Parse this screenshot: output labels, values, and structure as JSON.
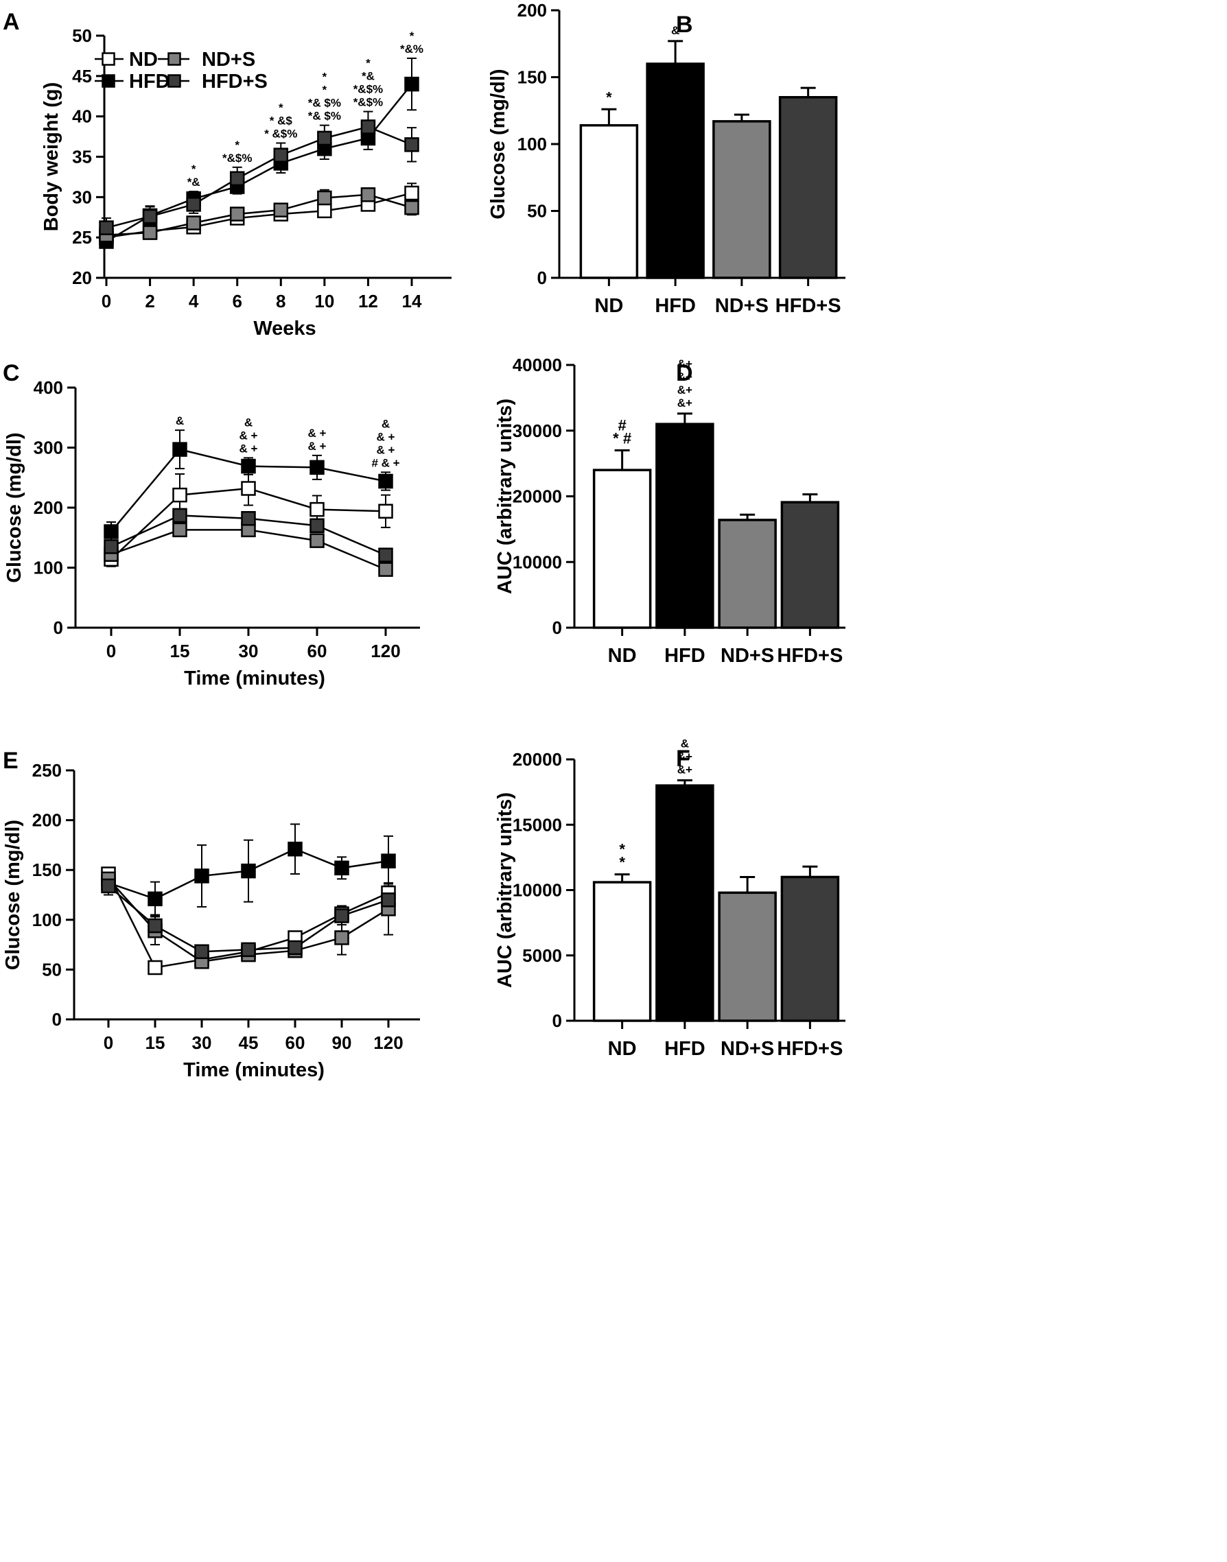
{
  "legend": {
    "entries": [
      {
        "label": "ND",
        "color": "#ffffff"
      },
      {
        "label": "HFD",
        "color": "#000000"
      },
      {
        "label": "ND+S",
        "color": "#7f7f7f"
      },
      {
        "label": "HFD+S",
        "color": "#3c3c3c"
      }
    ]
  },
  "chart_data": [
    {
      "panel": "A",
      "type": "line",
      "xlabel": "Weeks",
      "ylabel": "Body weight (g)",
      "categories": [
        "0",
        "2",
        "4",
        "6",
        "8",
        "10",
        "12",
        "14"
      ],
      "ylim": [
        20,
        50
      ],
      "yticks": [
        20,
        25,
        30,
        35,
        40,
        45,
        50
      ],
      "series": [
        {
          "name": "ND",
          "color": "#ffffff",
          "values": [
            25.0,
            25.8,
            26.3,
            27.4,
            27.9,
            28.3,
            29.1,
            30.5
          ],
          "errors": [
            0.5,
            0.6,
            0.6,
            0.7,
            0.7,
            0.7,
            0.8,
            1.2
          ]
        },
        {
          "name": "HFD",
          "color": "#000000",
          "values": [
            24.5,
            27.7,
            29.8,
            31.3,
            34.2,
            36.0,
            37.3,
            44.0
          ],
          "errors": [
            0.4,
            1.2,
            0.9,
            0.9,
            1.2,
            1.3,
            1.4,
            3.2
          ]
        },
        {
          "name": "ND+S",
          "color": "#7f7f7f",
          "values": [
            25.3,
            25.6,
            26.8,
            27.9,
            28.4,
            29.9,
            30.3,
            28.7
          ],
          "errors": [
            0.6,
            0.6,
            0.6,
            0.7,
            0.8,
            1.0,
            0.8,
            0.9
          ]
        },
        {
          "name": "HFD+S",
          "color": "#3c3c3c",
          "values": [
            26.2,
            27.6,
            29.1,
            32.3,
            35.2,
            37.3,
            38.7,
            36.5
          ],
          "errors": [
            1.2,
            1.2,
            1.1,
            1.4,
            1.5,
            1.6,
            1.9,
            2.1
          ]
        }
      ],
      "annotations": [
        {
          "x": "4",
          "lines": [
            "*",
            "*&"
          ]
        },
        {
          "x": "6",
          "lines": [
            "*",
            "*&$%"
          ]
        },
        {
          "x": "8",
          "lines": [
            "*",
            "* &$",
            "* &$%"
          ]
        },
        {
          "x": "10",
          "lines": [
            "*",
            "*",
            "*& $%",
            "*& $%"
          ]
        },
        {
          "x": "12",
          "lines": [
            "*",
            "*&",
            "*&$%",
            "*&$%"
          ]
        },
        {
          "x": "14",
          "lines": [
            "*",
            "*&%"
          ]
        }
      ]
    },
    {
      "panel": "B",
      "type": "bar",
      "ylabel": "Glucose (mg/dl)",
      "categories": [
        "ND",
        "HFD",
        "ND+S",
        "HFD+S"
      ],
      "colors": [
        "#ffffff",
        "#000000",
        "#7f7f7f",
        "#3c3c3c"
      ],
      "values": [
        114,
        160,
        117,
        135
      ],
      "errors": [
        12,
        17,
        5,
        7
      ],
      "ylim": [
        0,
        200
      ],
      "yticks": [
        0,
        50,
        100,
        150,
        200
      ],
      "annotations": [
        [
          "*"
        ],
        [
          "&"
        ],
        [],
        []
      ]
    },
    {
      "panel": "C",
      "type": "line",
      "xlabel": "Time (minutes)",
      "ylabel": "Glucose (mg/dl)",
      "categories": [
        "0",
        "15",
        "30",
        "60",
        "120"
      ],
      "ylim": [
        0,
        400
      ],
      "yticks": [
        0,
        100,
        200,
        300,
        400
      ],
      "series": [
        {
          "name": "ND",
          "color": "#ffffff",
          "values": [
            114,
            221,
            232,
            197,
            194
          ],
          "errors": [
            12,
            35,
            28,
            23,
            27
          ]
        },
        {
          "name": "HFD",
          "color": "#000000",
          "values": [
            160,
            297,
            269,
            267,
            244
          ],
          "errors": [
            16,
            32,
            14,
            20,
            15
          ]
        },
        {
          "name": "ND+S",
          "color": "#7f7f7f",
          "values": [
            122,
            163,
            163,
            145,
            97
          ],
          "errors": [
            6,
            6,
            6,
            6,
            5
          ]
        },
        {
          "name": "HFD+S",
          "color": "#3c3c3c",
          "values": [
            135,
            187,
            182,
            170,
            121
          ],
          "errors": [
            7,
            10,
            11,
            10,
            6
          ]
        }
      ],
      "annotations": [
        {
          "x": "15",
          "lines": [
            "&"
          ]
        },
        {
          "x": "30",
          "lines": [
            "&",
            "& +",
            "& +"
          ]
        },
        {
          "x": "60",
          "lines": [
            "& +",
            "& +"
          ]
        },
        {
          "x": "120",
          "lines": [
            "&",
            "& +",
            "& +",
            "# & +"
          ]
        }
      ]
    },
    {
      "panel": "D",
      "type": "bar",
      "ylabel": "AUC (arbitrary units)",
      "categories": [
        "ND",
        "HFD",
        "ND+S",
        "HFD+S"
      ],
      "colors": [
        "#ffffff",
        "#000000",
        "#7f7f7f",
        "#3c3c3c"
      ],
      "values": [
        24000,
        31000,
        16400,
        19100
      ],
      "errors": [
        3000,
        1600,
        800,
        1200
      ],
      "ylim": [
        0,
        40000
      ],
      "yticks": [
        0,
        10000,
        20000,
        30000,
        40000
      ],
      "annotations": [
        [
          "#",
          "* #"
        ],
        [
          "&+",
          "&+",
          "&+",
          "&+"
        ],
        [],
        []
      ]
    },
    {
      "panel": "E",
      "type": "line",
      "xlabel": "Time (minutes)",
      "ylabel": "Glucose (mg/dl)",
      "categories": [
        "0",
        "15",
        "30",
        "45",
        "60",
        "90",
        "120"
      ],
      "ylim": [
        0,
        250
      ],
      "yticks": [
        0,
        50,
        100,
        150,
        200,
        250
      ],
      "series": [
        {
          "name": "ND",
          "color": "#ffffff",
          "values": [
            146,
            52,
            60,
            68,
            82,
            106,
            127
          ],
          "errors": [
            5,
            5,
            5,
            5,
            6,
            8,
            9
          ]
        },
        {
          "name": "HFD",
          "color": "#000000",
          "values": [
            137,
            121,
            144,
            149,
            171,
            152,
            159
          ],
          "errors": [
            8,
            17,
            31,
            31,
            25,
            11,
            25
          ]
        },
        {
          "name": "ND+S",
          "color": "#7f7f7f",
          "values": [
            141,
            89,
            58,
            65,
            69,
            82,
            111
          ],
          "errors": [
            7,
            14,
            5,
            5,
            6,
            17,
            26
          ]
        },
        {
          "name": "HFD+S",
          "color": "#3c3c3c",
          "values": [
            134,
            94,
            68,
            70,
            72,
            104,
            120
          ],
          "errors": [
            9,
            11,
            5,
            5,
            6,
            9,
            14
          ]
        }
      ],
      "annotations": []
    },
    {
      "panel": "F",
      "type": "bar",
      "ylabel": "AUC (arbitrary units)",
      "categories": [
        "ND",
        "HFD",
        "ND+S",
        "HFD+S"
      ],
      "colors": [
        "#ffffff",
        "#000000",
        "#7f7f7f",
        "#3c3c3c"
      ],
      "values": [
        10600,
        18000,
        9800,
        11000
      ],
      "errors": [
        600,
        400,
        1200,
        800
      ],
      "ylim": [
        0,
        20000
      ],
      "yticks": [
        0,
        5000,
        10000,
        15000,
        20000
      ],
      "annotations": [
        [
          "*",
          "*"
        ],
        [
          "&",
          "&+",
          "&+"
        ],
        [],
        []
      ]
    }
  ]
}
